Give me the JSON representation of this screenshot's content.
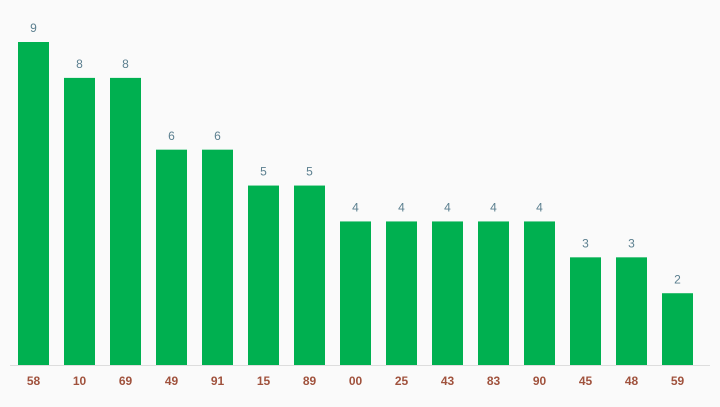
{
  "chart_data": {
    "type": "bar",
    "categories": [
      "58",
      "10",
      "69",
      "49",
      "91",
      "15",
      "89",
      "00",
      "25",
      "43",
      "83",
      "90",
      "45",
      "48",
      "59"
    ],
    "values": [
      9,
      8,
      8,
      6,
      6,
      5,
      5,
      4,
      4,
      4,
      4,
      4,
      3,
      3,
      2
    ],
    "color": "#00b050"
  }
}
